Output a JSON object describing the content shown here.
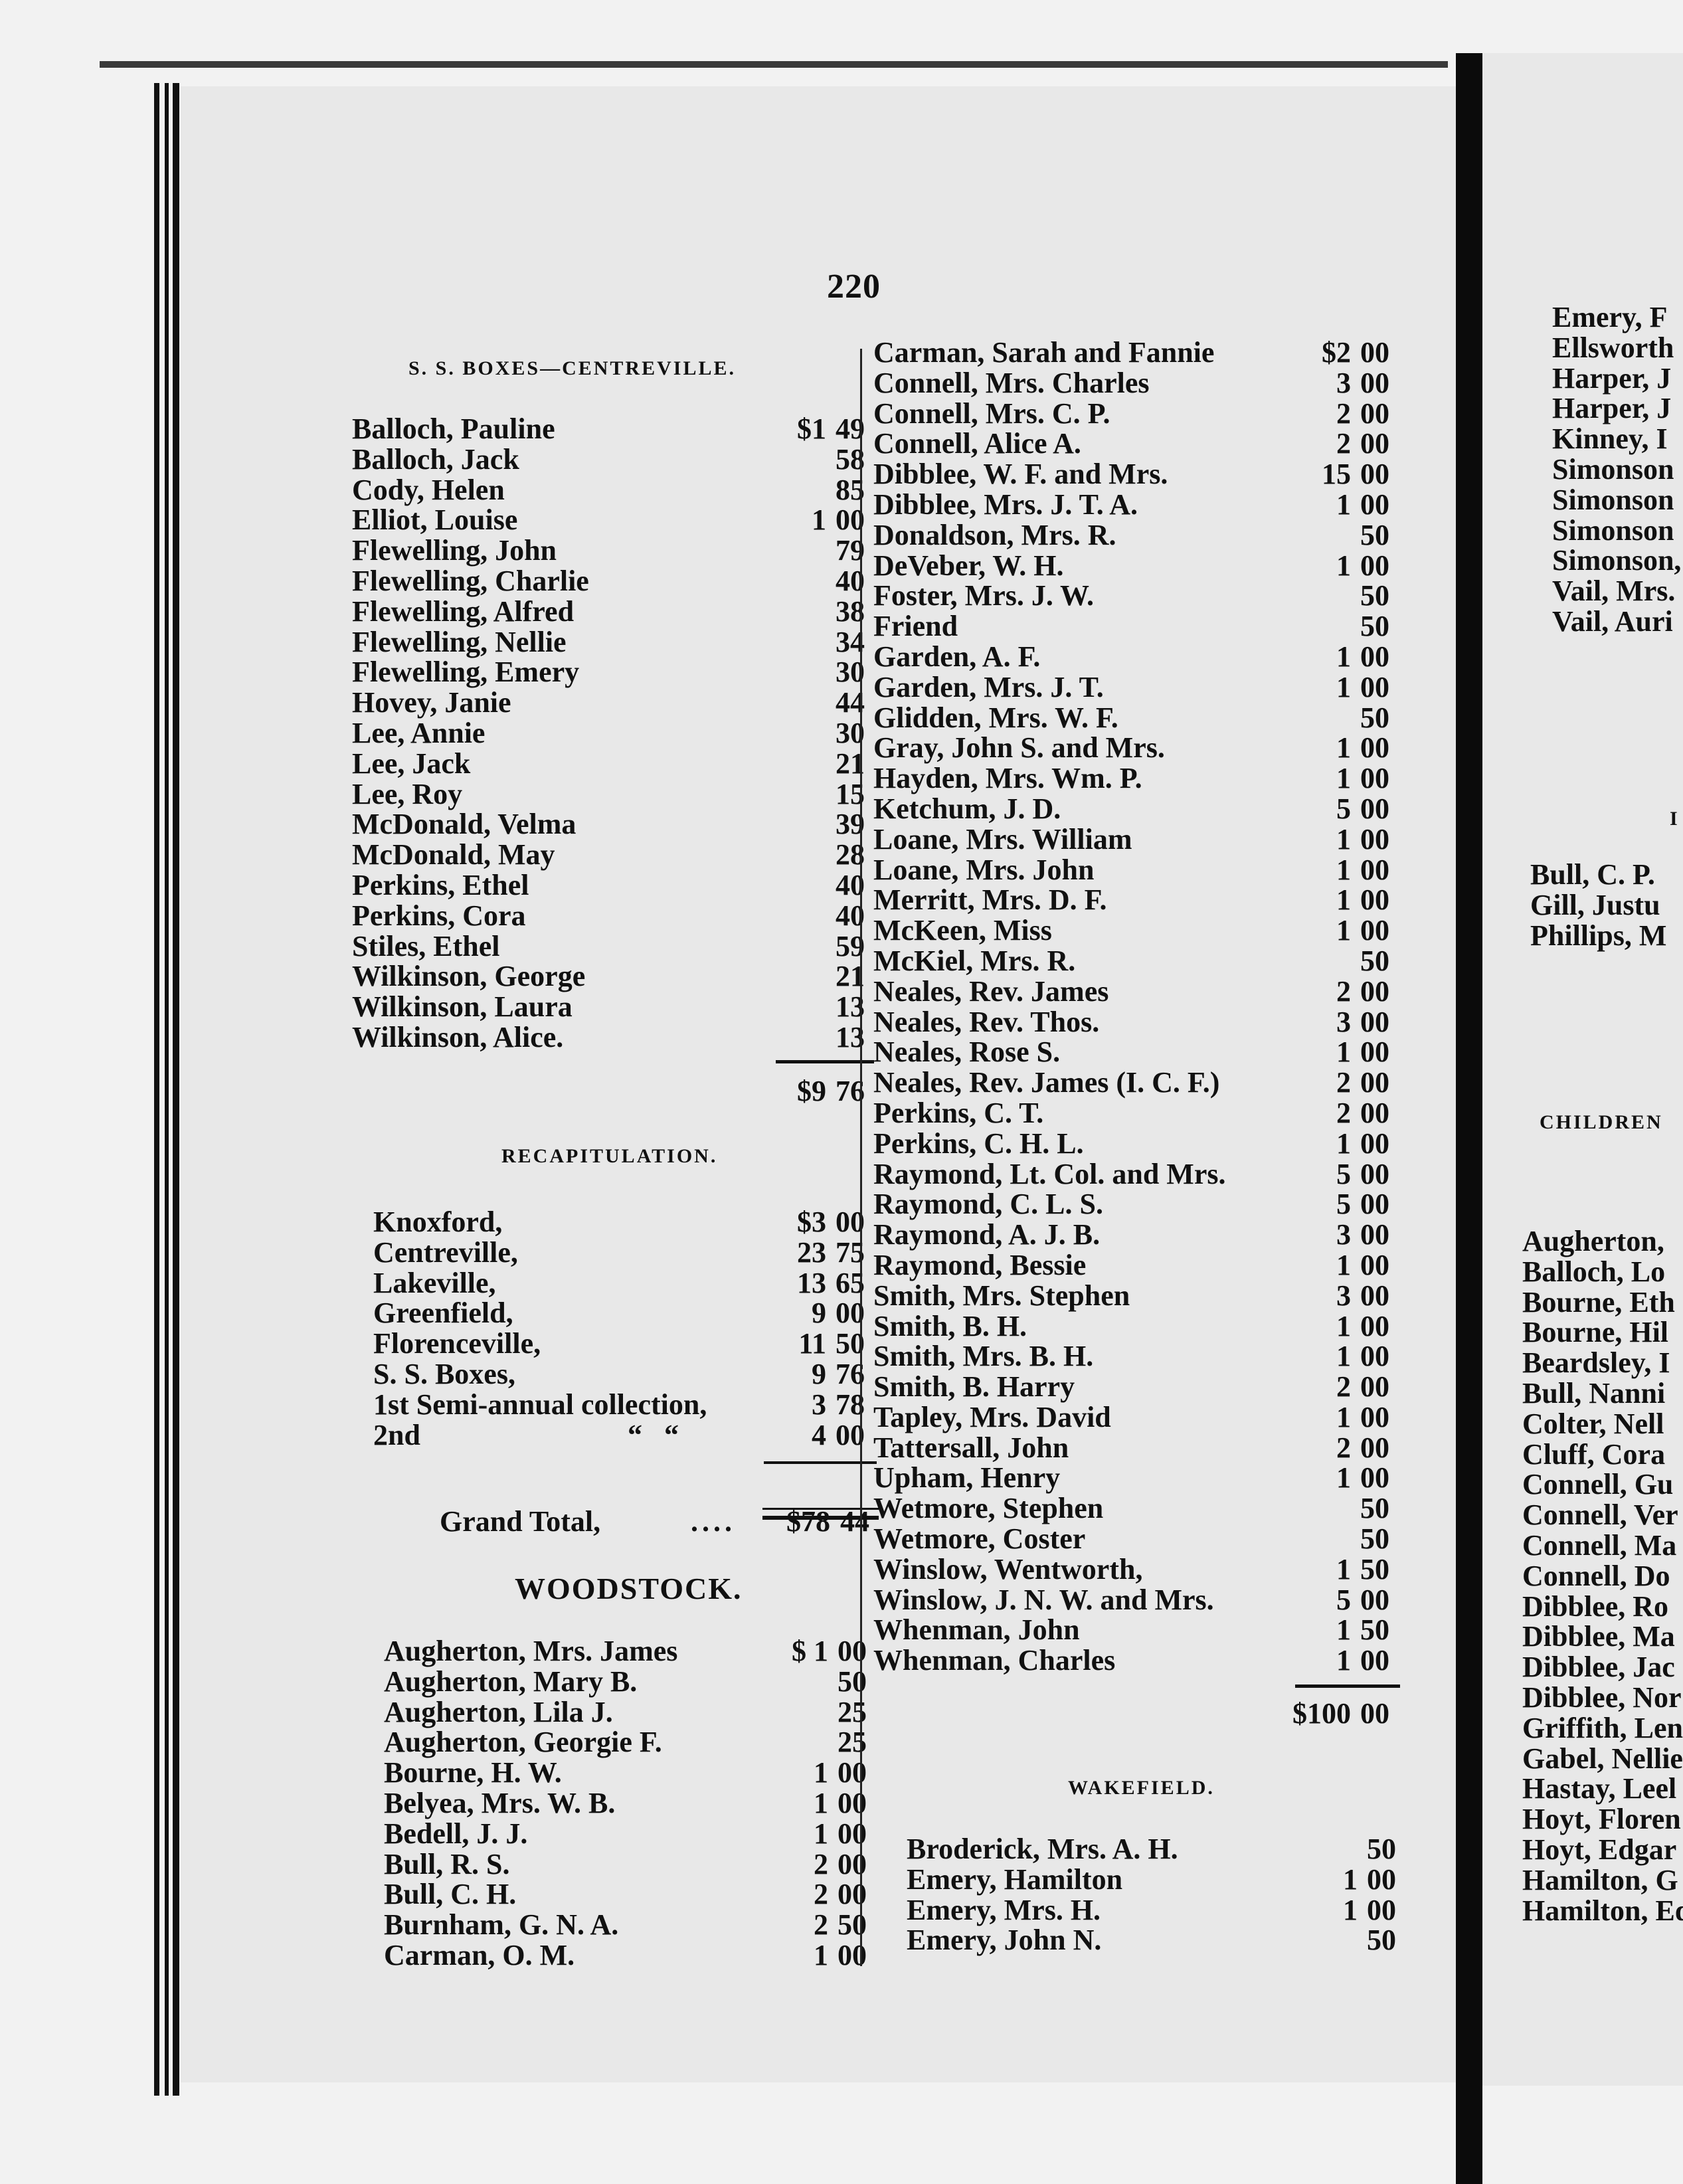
{
  "page_number": "220",
  "left_column": {
    "centreville_heading": "S. S. BOXES—CENTREVILLE.",
    "centreville_rows": [
      {
        "name": "Balloch, Pauline",
        "dollars": "$1",
        "cents": "49"
      },
      {
        "name": "Balloch, Jack",
        "dollars": "",
        "cents": "58"
      },
      {
        "name": "Cody, Helen",
        "dollars": "",
        "cents": "85"
      },
      {
        "name": "Elliot, Louise",
        "dollars": "1",
        "cents": "00"
      },
      {
        "name": "Flewelling, John",
        "dollars": "",
        "cents": "79"
      },
      {
        "name": "Flewelling, Charlie",
        "dollars": "",
        "cents": "40"
      },
      {
        "name": "Flewelling, Alfred",
        "dollars": "",
        "cents": "38"
      },
      {
        "name": "Flewelling, Nellie",
        "dollars": "",
        "cents": "34"
      },
      {
        "name": "Flewelling, Emery",
        "dollars": "",
        "cents": "30"
      },
      {
        "name": "Hovey, Janie",
        "dollars": "",
        "cents": "44"
      },
      {
        "name": "Lee, Annie",
        "dollars": "",
        "cents": "30"
      },
      {
        "name": "Lee, Jack",
        "dollars": "",
        "cents": "21"
      },
      {
        "name": "Lee, Roy",
        "dollars": "",
        "cents": "15"
      },
      {
        "name": "McDonald, Velma",
        "dollars": "",
        "cents": "39"
      },
      {
        "name": "McDonald, May",
        "dollars": "",
        "cents": "28"
      },
      {
        "name": "Perkins, Ethel",
        "dollars": "",
        "cents": "40"
      },
      {
        "name": "Perkins, Cora",
        "dollars": "",
        "cents": "40"
      },
      {
        "name": "Stiles, Ethel",
        "dollars": "",
        "cents": "59"
      },
      {
        "name": "Wilkinson, George",
        "dollars": "",
        "cents": "21"
      },
      {
        "name": "Wilkinson, Laura",
        "dollars": "",
        "cents": "13"
      },
      {
        "name": "Wilkinson, Alice.",
        "dollars": "",
        "cents": "13"
      }
    ],
    "centreville_total": {
      "dollars": "$9",
      "cents": "76"
    },
    "recap_heading": "RECAPITULATION.",
    "recap_rows": [
      {
        "name": "Knoxford,",
        "dollars": "$3",
        "cents": "00"
      },
      {
        "name": "Centreville,",
        "dollars": "23",
        "cents": "75"
      },
      {
        "name": "Lakeville,",
        "dollars": "13",
        "cents": "65"
      },
      {
        "name": "Greenfield,",
        "dollars": "9",
        "cents": "00"
      },
      {
        "name": "Florenceville,",
        "dollars": "11",
        "cents": "50"
      },
      {
        "name": "S. S. Boxes,",
        "dollars": "9",
        "cents": "76"
      },
      {
        "name": "1st Semi-annual collection,",
        "dollars": "3",
        "cents": "78"
      },
      {
        "name": "2nd",
        "dollars": "4",
        "cents": "00"
      }
    ],
    "recap_ditto_1": "“",
    "recap_ditto_2": "“",
    "grand_total": {
      "label": "Grand Total,",
      "leader": "....",
      "dollars": "$78",
      "cents": "44"
    },
    "woodstock_heading": "WOODSTOCK.",
    "woodstock_rows": [
      {
        "name": "Augherton, Mrs. James",
        "dollars": "$ 1",
        "cents": "00"
      },
      {
        "name": "Augherton, Mary B.",
        "dollars": "",
        "cents": "50"
      },
      {
        "name": "Augherton, Lila J.",
        "dollars": "",
        "cents": "25"
      },
      {
        "name": "Augherton, Georgie F.",
        "dollars": "",
        "cents": "25"
      },
      {
        "name": "Bourne, H. W.",
        "dollars": "1",
        "cents": "00"
      },
      {
        "name": "Belyea, Mrs. W. B.",
        "dollars": "1",
        "cents": "00"
      },
      {
        "name": "Bedell, J. J.",
        "dollars": "1",
        "cents": "00"
      },
      {
        "name": "Bull, R. S.",
        "dollars": "2",
        "cents": "00"
      },
      {
        "name": "Bull, C. H.",
        "dollars": "2",
        "cents": "00"
      },
      {
        "name": "Burnham, G. N. A.",
        "dollars": "2",
        "cents": "50"
      },
      {
        "name": "Carman, O. M.",
        "dollars": "1",
        "cents": "00"
      }
    ]
  },
  "middle_column": {
    "woodstock_rows": [
      {
        "name": "Carman, Sarah and Fannie",
        "dollars": "$2",
        "cents": "00"
      },
      {
        "name": "Connell, Mrs. Charles",
        "dollars": "3",
        "cents": "00"
      },
      {
        "name": "Connell, Mrs. C. P.",
        "dollars": "2",
        "cents": "00"
      },
      {
        "name": "Connell, Alice A.",
        "dollars": "2",
        "cents": "00"
      },
      {
        "name": "Dibblee, W. F. and Mrs.",
        "dollars": "15",
        "cents": "00"
      },
      {
        "name": "Dibblee, Mrs. J. T. A.",
        "dollars": "1",
        "cents": "00"
      },
      {
        "name": "Donaldson, Mrs. R.",
        "dollars": "",
        "cents": "50"
      },
      {
        "name": "DeVeber, W. H.",
        "dollars": "1",
        "cents": "00"
      },
      {
        "name": "Foster, Mrs. J. W.",
        "dollars": "",
        "cents": "50"
      },
      {
        "name": "Friend",
        "dollars": "",
        "cents": "50"
      },
      {
        "name": "Garden, A. F.",
        "dollars": "1",
        "cents": "00"
      },
      {
        "name": "Garden, Mrs. J. T.",
        "dollars": "1",
        "cents": "00"
      },
      {
        "name": "Glidden, Mrs. W. F.",
        "dollars": "",
        "cents": "50"
      },
      {
        "name": "Gray, John S. and Mrs.",
        "dollars": "1",
        "cents": "00"
      },
      {
        "name": "Hayden, Mrs. Wm. P.",
        "dollars": "1",
        "cents": "00"
      },
      {
        "name": "Ketchum, J. D.",
        "dollars": "5",
        "cents": "00"
      },
      {
        "name": "Loane, Mrs. William",
        "dollars": "1",
        "cents": "00"
      },
      {
        "name": "Loane, Mrs. John",
        "dollars": "1",
        "cents": "00"
      },
      {
        "name": "Merritt, Mrs. D. F.",
        "dollars": "1",
        "cents": "00"
      },
      {
        "name": "McKeen, Miss",
        "dollars": "1",
        "cents": "00"
      },
      {
        "name": "McKiel, Mrs. R.",
        "dollars": "",
        "cents": "50"
      },
      {
        "name": "Neales, Rev. James",
        "dollars": "2",
        "cents": "00"
      },
      {
        "name": "Neales, Rev. Thos.",
        "dollars": "3",
        "cents": "00"
      },
      {
        "name": "Neales, Rose S.",
        "dollars": "1",
        "cents": "00"
      },
      {
        "name": "Neales, Rev. James (I. C. F.)",
        "dollars": "2",
        "cents": "00"
      },
      {
        "name": "Perkins, C. T.",
        "dollars": "2",
        "cents": "00"
      },
      {
        "name": "Perkins, C. H. L.",
        "dollars": "1",
        "cents": "00"
      },
      {
        "name": "Raymond, Lt. Col. and Mrs.",
        "dollars": "5",
        "cents": "00"
      },
      {
        "name": "Raymond, C. L. S.",
        "dollars": "5",
        "cents": "00"
      },
      {
        "name": "Raymond, A. J. B.",
        "dollars": "3",
        "cents": "00"
      },
      {
        "name": "Raymond, Bessie",
        "dollars": "1",
        "cents": "00"
      },
      {
        "name": "Smith, Mrs. Stephen",
        "dollars": "3",
        "cents": "00"
      },
      {
        "name": "Smith, B. H.",
        "dollars": "1",
        "cents": "00"
      },
      {
        "name": "Smith, Mrs. B. H.",
        "dollars": "1",
        "cents": "00"
      },
      {
        "name": "Smith, B. Harry",
        "dollars": "2",
        "cents": "00"
      },
      {
        "name": "Tapley, Mrs. David",
        "dollars": "1",
        "cents": "00"
      },
      {
        "name": "Tattersall, John",
        "dollars": "2",
        "cents": "00"
      },
      {
        "name": "Upham, Henry",
        "dollars": "1",
        "cents": "00"
      },
      {
        "name": "Wetmore, Stephen",
        "dollars": "",
        "cents": "50"
      },
      {
        "name": "Wetmore, Coster",
        "dollars": "",
        "cents": "50"
      },
      {
        "name": "Winslow, Wentworth,",
        "dollars": "1",
        "cents": "50"
      },
      {
        "name": "Winslow, J. N. W. and Mrs.",
        "dollars": "5",
        "cents": "00"
      },
      {
        "name": "Whenman, John",
        "dollars": "1",
        "cents": "50"
      },
      {
        "name": "Whenman, Charles",
        "dollars": "1",
        "cents": "00"
      }
    ],
    "woodstock_total": {
      "dollars": "$100",
      "cents": "00"
    },
    "wakefield_heading": "WAKEFIELD.",
    "wakefield_rows": [
      {
        "name": "Broderick, Mrs. A. H.",
        "dollars": "",
        "cents": "50"
      },
      {
        "name": "Emery, Hamilton",
        "dollars": "1",
        "cents": "00"
      },
      {
        "name": "Emery, Mrs. H.",
        "dollars": "1",
        "cents": "00"
      },
      {
        "name": "Emery, John N.",
        "dollars": "",
        "cents": "50"
      }
    ]
  },
  "right_page": {
    "top_rows": [
      "Emery, F",
      "Ellsworth",
      "Harper, J",
      "Harper, J",
      "Kinney, I",
      "Simonson",
      "Simonson",
      "Simonson",
      "Simonson,",
      "Vail, Mrs.",
      "Vail, Auri"
    ],
    "partial_heading": "I",
    "mid_rows": [
      "Bull, C. P.",
      "Gill, Justu",
      "Phillips, M"
    ],
    "children_heading": "CHILDREN",
    "children_rows": [
      "Augherton,",
      "Balloch, Lo",
      "Bourne, Eth",
      "Bourne, Hil",
      "Beardsley, I",
      "Bull, Nanni",
      "Colter, Nell",
      "Cluff, Cora",
      "Connell, Gu",
      "Connell, Ver",
      "Connell, Ma",
      "Connell, Do",
      "Dibblee, Ro",
      "Dibblee, Ma",
      "Dibblee, Jac",
      "Dibblee, Nor",
      "Griffith, Len",
      "Gabel, Nellie",
      "Hastay, Leel",
      "Hoyt, Floren",
      "Hoyt, Edgar",
      "Hamilton, G",
      "Hamilton, Ed"
    ]
  }
}
